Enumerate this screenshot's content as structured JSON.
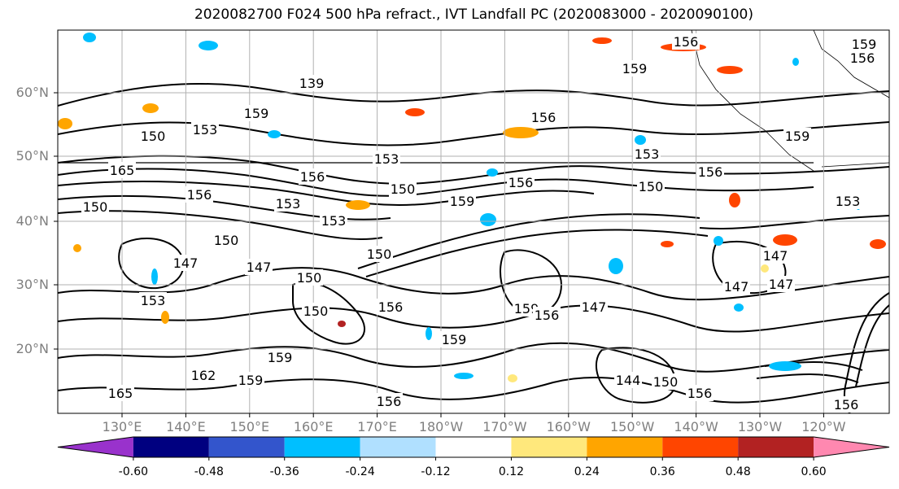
{
  "title": "2020082700 F024 500 hPa refract., IVT Landfall PC (2020083000 - 2020090100)",
  "lat_ticks": [
    {
      "label": "60°N"
    },
    {
      "label": "50°N"
    },
    {
      "label": "40°N"
    },
    {
      "label": "30°N"
    },
    {
      "label": "20°N"
    }
  ],
  "lon_ticks": [
    {
      "label": "130°E"
    },
    {
      "label": "140°E"
    },
    {
      "label": "150°E"
    },
    {
      "label": "160°E"
    },
    {
      "label": "170°E"
    },
    {
      "label": "180°W"
    },
    {
      "label": "170°W"
    },
    {
      "label": "160°W"
    },
    {
      "label": "150°W"
    },
    {
      "label": "140°W"
    },
    {
      "label": "130°W"
    },
    {
      "label": "120°W"
    }
  ],
  "colorbar": {
    "colors": [
      "#9932CC",
      "#000080",
      "#3355CC",
      "#00BFFF",
      "#B0E0FF",
      "#FFFFFF",
      "#FFE87C",
      "#FFA500",
      "#FF4500",
      "#B22222",
      "#FF88B0"
    ],
    "labels": [
      "-0.60",
      "-0.48",
      "-0.36",
      "-0.24",
      "-0.12",
      "0.12",
      "0.24",
      "0.36",
      "0.48",
      "0.60"
    ]
  },
  "contour_labels": [
    "156",
    "159",
    "156",
    "159",
    "139",
    "159",
    "150",
    "153",
    "153",
    "156",
    "150",
    "156",
    "159",
    "156",
    "153",
    "150",
    "150",
    "159",
    "156",
    "165",
    "156",
    "153",
    "150",
    "150",
    "147",
    "147",
    "153",
    "150",
    "147",
    "150",
    "153",
    "156",
    "159",
    "159",
    "156",
    "147",
    "162",
    "159",
    "165",
    "156",
    "144",
    "150",
    "156",
    "156",
    "147",
    "153",
    "159",
    "147"
  ]
}
